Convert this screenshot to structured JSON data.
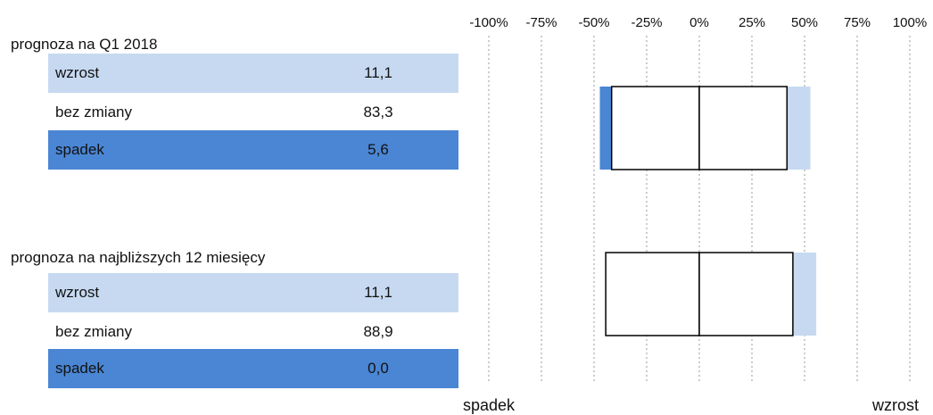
{
  "groups": [
    {
      "title": "prognoza na Q1 2018",
      "rows": [
        {
          "label": "wzrost",
          "value": "11,1"
        },
        {
          "label": "bez zmiany",
          "value": "83,3"
        },
        {
          "label": "spadek",
          "value": "5,6"
        }
      ]
    },
    {
      "title": "prognoza na najbliższych 12 miesięcy",
      "rows": [
        {
          "label": "wzrost",
          "value": "11,1"
        },
        {
          "label": "bez zmiany",
          "value": "88,9"
        },
        {
          "label": "spadek",
          "value": "0,0"
        }
      ]
    }
  ],
  "chart_data": {
    "type": "bar",
    "orientation": "horizontal",
    "xlim": [
      -100,
      100
    ],
    "tick_values": [
      -100,
      -75,
      -50,
      -25,
      0,
      25,
      50,
      75,
      100
    ],
    "tick_labels": [
      "-100%",
      "-75%",
      "-50%",
      "-25%",
      "0%",
      "25%",
      "50%",
      "75%",
      "100%"
    ],
    "grid": "vertical-dotted",
    "left_label": "spadek",
    "right_label": "wzrost",
    "categories": [
      "prognoza na Q1 2018",
      "prognoza na najbliższych 12 miesięcy"
    ],
    "series": [
      {
        "key": "spadek",
        "color": "#4a86d4",
        "values": [
          5.6,
          0.0
        ]
      },
      {
        "key": "bez zmiany",
        "color": "#ffffff",
        "values": [
          83.3,
          88.9
        ]
      },
      {
        "key": "wzrost",
        "color": "#c6d9f1",
        "values": [
          11.1,
          11.1
        ]
      }
    ]
  }
}
